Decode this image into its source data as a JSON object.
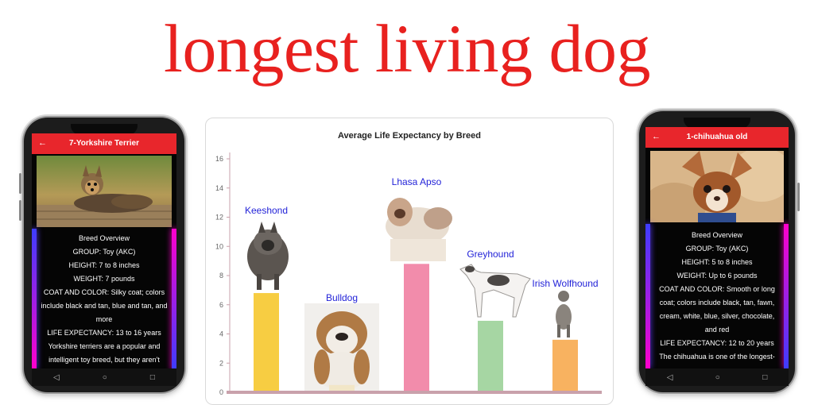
{
  "page_title": "longest living dog",
  "left_phone": {
    "header": "7-Yorkshire Terrier",
    "back_icon": "arrow-left-icon",
    "lines": [
      "Breed Overview",
      "GROUP: Toy (AKC)",
      "HEIGHT: 7 to 8 inches",
      "WEIGHT: 7 pounds",
      "COAT AND COLOR: Silky coat; colors",
      "include black and tan, blue and tan, and",
      "more",
      "LIFE EXPECTANCY: 13 to 16 years",
      "Yorkshire terriers are a popular and",
      "intelligent toy breed, but they aren't"
    ]
  },
  "right_phone": {
    "header": "1-chihuahua old",
    "back_icon": "arrow-left-icon",
    "lines": [
      "Breed Overview",
      "GROUP: Toy (AKC)",
      "HEIGHT: 5 to 8 inches",
      "WEIGHT: Up to 6 pounds",
      "COAT AND COLOR: Smooth or long",
      "coat; colors include black, tan, fawn,",
      "cream, white, blue, silver, chocolate,",
      "and red",
      "LIFE EXPECTANCY: 12 to 20 years",
      "The chihuahua is one of the longest-"
    ]
  },
  "nav": {
    "back": "◁",
    "home": "○",
    "recent": "□"
  },
  "chart_data": {
    "type": "bar",
    "title": "Average Life Expectancy by Breed",
    "categories": [
      "Keeshond",
      "Bulldog",
      "Lhasa Apso",
      "Greyhound",
      "Irish Wolfhound"
    ],
    "values": [
      6.8,
      0.5,
      8.8,
      4.9,
      3.6
    ],
    "colors": [
      "#f7cd42",
      "#f2e6c7",
      "#f28cab",
      "#a6d6a3",
      "#f8b260"
    ],
    "ylim": [
      0,
      16
    ],
    "yticks": [
      0,
      2,
      4,
      6,
      8,
      10,
      12,
      14,
      16
    ],
    "label_color": "#2323d8",
    "grid": false
  }
}
